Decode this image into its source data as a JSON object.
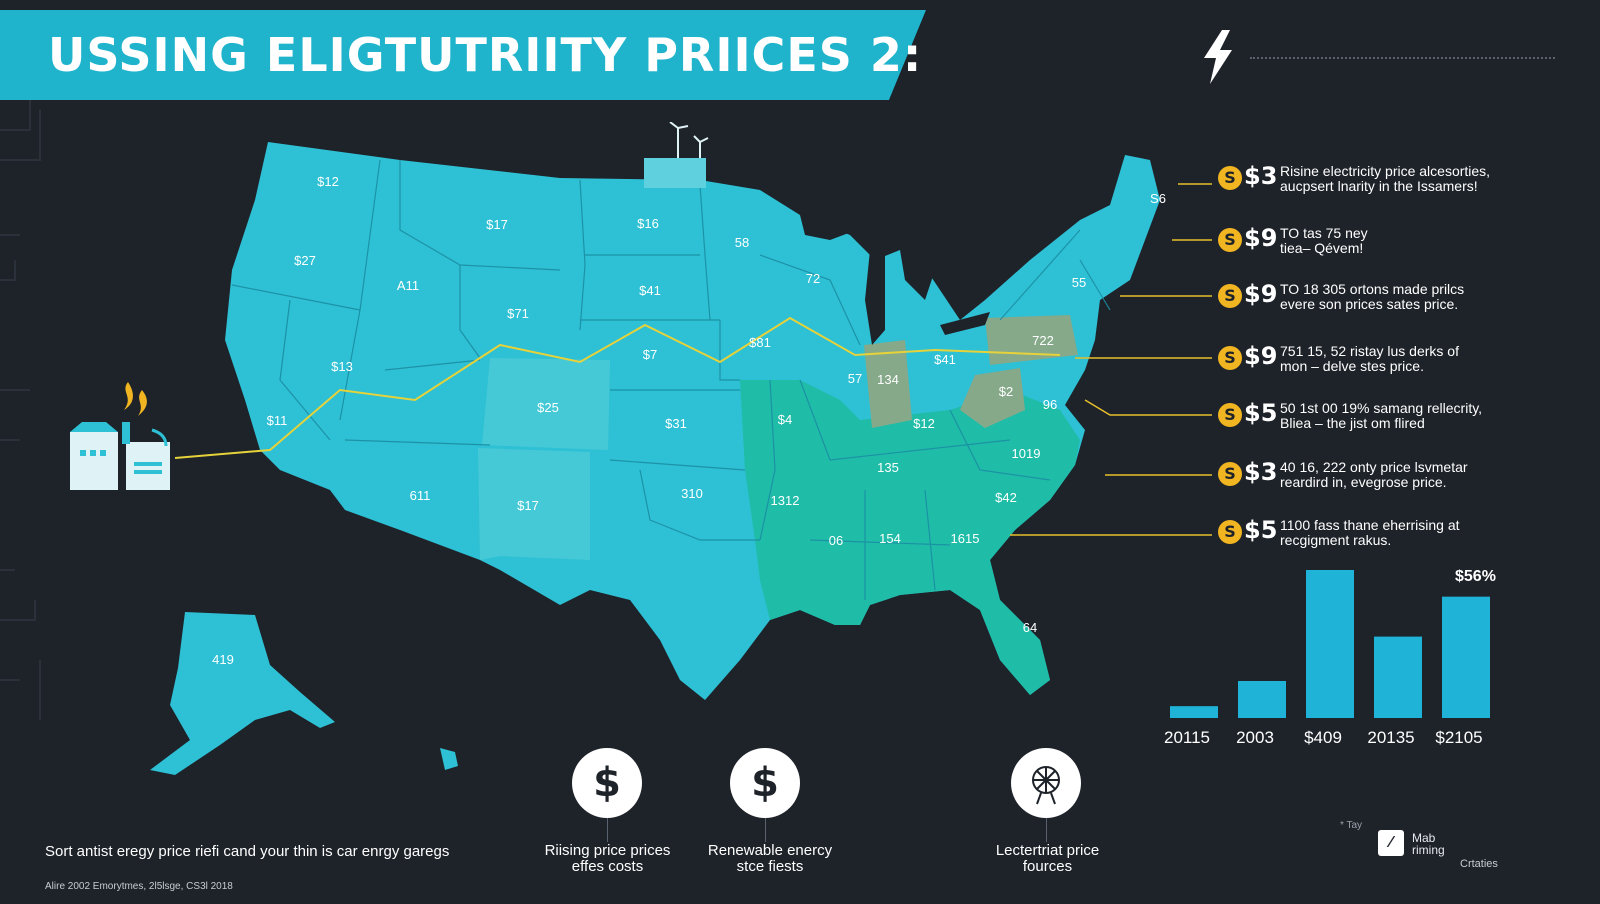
{
  "header": {
    "title": "USSING ELIGTUTRIITY PRIICES 2:",
    "accent_color": "#1fb3cc",
    "icon": "lightning-bolt-icon"
  },
  "map": {
    "colors": {
      "base": "#2ec0d4",
      "highlight": "#1fbca8",
      "olive": "#86a98a",
      "background": "#1e2229"
    },
    "state_labels": [
      "$12",
      "$17",
      "$16",
      "$27",
      "A11",
      "$71",
      "$41",
      "58",
      "72",
      "$13",
      "$7",
      "$81",
      "$25",
      "$31",
      "$4",
      "57",
      "134",
      "$41",
      "$11",
      "611",
      "$17",
      "310",
      "1312",
      "$12",
      "135",
      "1019",
      "$42",
      "06",
      "154",
      "1615",
      "64",
      "419",
      "722",
      "$2",
      "96",
      "55",
      "S6"
    ]
  },
  "price_list": [
    {
      "coin": "S",
      "value": "$3",
      "line1": "Risine electricity price alcesorties,",
      "line2": "aucpsert lnarity in the Issamers!"
    },
    {
      "coin": "S",
      "value": "$9",
      "line1": "TO tas 75 ney",
      "line2": "tiea– Qévem!"
    },
    {
      "coin": "S",
      "value": "$9",
      "line1": "TO 18 305 ortons made prilcs",
      "line2": "evere son prices sates price."
    },
    {
      "coin": "S",
      "value": "$9",
      "line1": "751 15, 52 ristay lus derks of",
      "line2": "mon – delve stes price."
    },
    {
      "coin": "S",
      "value": "$5",
      "line1": "50 1st 00 19% samang rellecrity,",
      "line2": "Bliea – the jist om flired"
    },
    {
      "coin": "S",
      "value": "$3",
      "line1": "40 16, 222 onty price lsvmetar",
      "line2": "reardird in, evegrose price."
    },
    {
      "coin": "S",
      "value": "$5",
      "line1": "1100 fass thane eherrising at",
      "line2": "recgigment rakus."
    }
  ],
  "chart_data": {
    "type": "bar",
    "categories": [
      "20115",
      "2003",
      "$409",
      "20135",
      "$2105"
    ],
    "values": [
      8,
      25,
      100,
      55,
      82
    ],
    "annotations": [
      "$56%"
    ],
    "bar_color": "#1fb3d8"
  },
  "bottom": {
    "left_text": "Sort antist eregy price riefi cand your thin is car enrgy garegs",
    "footnote": "Alire 2002 Emorytmes, 2l5lsge, CS3l 2018",
    "captions": [
      {
        "icon": "dollar-icon",
        "glyph": "$",
        "line1": "Riising price prices",
        "line2": "effes costs"
      },
      {
        "icon": "dollar-icon",
        "glyph": "$",
        "line1": "Renewable enercy",
        "line2": "stce fiests"
      },
      {
        "icon": "wind-turbine-icon",
        "glyph": "",
        "line1": "Lectertriat price",
        "line2": "fources"
      }
    ],
    "brand": {
      "tag": "* Tay",
      "mark": "∕",
      "name_line1": "Mab",
      "name_line2": "riming",
      "sub": "Crtaties"
    }
  }
}
